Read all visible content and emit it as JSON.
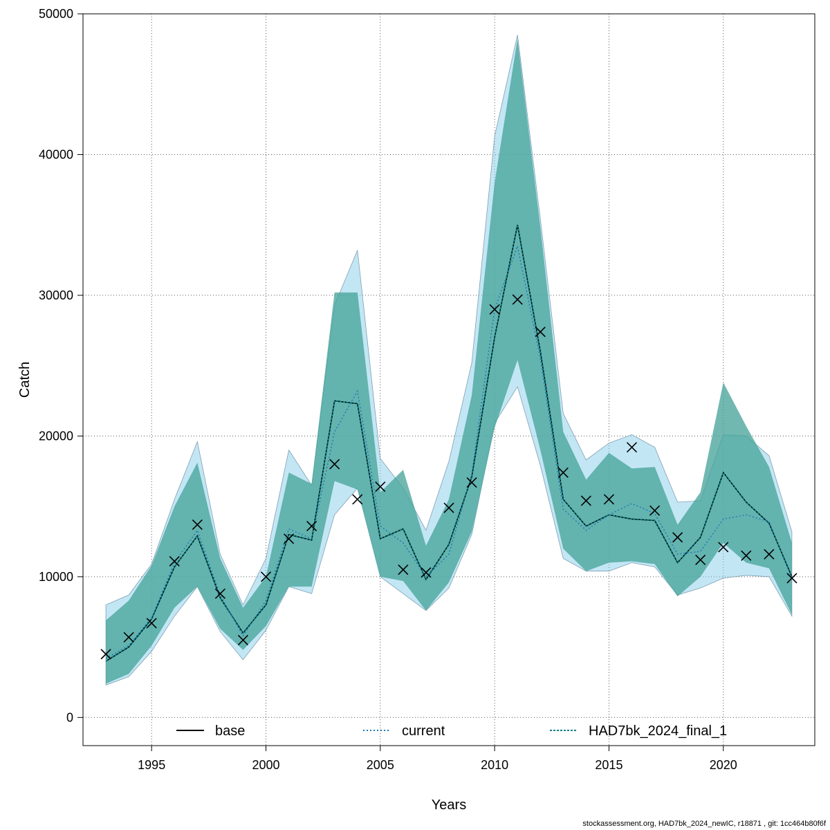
{
  "chart_data": {
    "type": "line",
    "xlabel": "Years",
    "ylabel": "Catch",
    "xlim": [
      1992,
      2024
    ],
    "ylim": [
      -2000,
      50000
    ],
    "x_ticks": [
      1995,
      2000,
      2005,
      2010,
      2015,
      2020
    ],
    "y_ticks": [
      0,
      10000,
      20000,
      30000,
      40000,
      50000
    ],
    "grid": true,
    "legend_position": "bottom",
    "years": [
      1993,
      1994,
      1995,
      1996,
      1997,
      1998,
      1999,
      2000,
      2001,
      2002,
      2003,
      2004,
      2005,
      2006,
      2007,
      2008,
      2009,
      2010,
      2011,
      2012,
      2013,
      2014,
      2015,
      2016,
      2017,
      2018,
      2019,
      2020,
      2021,
      2022,
      2023
    ],
    "series": [
      {
        "name": "base",
        "style": "solid",
        "color": "#000000",
        "values": [
          4000,
          5000,
          7000,
          10700,
          12900,
          8500,
          6000,
          8000,
          13000,
          12600,
          22500,
          22300,
          12700,
          13400,
          9800,
          12300,
          17100,
          27000,
          35000,
          26000,
          15500,
          13600,
          14400,
          14100,
          14000,
          11000,
          12800,
          17400,
          15300,
          13800,
          10000
        ],
        "lower": [
          2400,
          3100,
          5100,
          7800,
          9300,
          6300,
          4800,
          6500,
          9300,
          9300,
          16800,
          16200,
          10000,
          9700,
          7600,
          9600,
          13200,
          20600,
          25400,
          19000,
          12000,
          10400,
          11000,
          11100,
          10900,
          8600,
          10000,
          12400,
          11000,
          10600,
          7300
        ],
        "upper": [
          6900,
          8300,
          10800,
          15000,
          18100,
          11300,
          7800,
          10000,
          17400,
          16600,
          30200,
          30200,
          16000,
          17600,
          12200,
          15500,
          22900,
          38000,
          48200,
          34800,
          20300,
          16900,
          18800,
          17700,
          17800,
          13700,
          16000,
          23800,
          20700,
          17800,
          12400
        ]
      },
      {
        "name": "current",
        "style": "dotted",
        "color": "#1f77b4",
        "values": [
          4200,
          5100,
          7100,
          11000,
          13300,
          8700,
          5800,
          8300,
          13400,
          12700,
          20300,
          23200,
          13600,
          12400,
          10000,
          11600,
          17300,
          29000,
          33500,
          25500,
          14800,
          13300,
          14400,
          15200,
          14500,
          11600,
          11800,
          14100,
          14400,
          13900,
          9900
        ],
        "lower": [
          2300,
          2900,
          4700,
          7200,
          9300,
          6100,
          4100,
          6200,
          9300,
          8800,
          14400,
          16300,
          10000,
          8800,
          7600,
          9200,
          13000,
          20900,
          23500,
          17900,
          11300,
          10400,
          10400,
          11000,
          10700,
          8700,
          9200,
          9900,
          10100,
          10000,
          7200
        ],
        "upper": [
          8000,
          8700,
          10900,
          15500,
          19600,
          11600,
          8000,
          11300,
          19000,
          16500,
          29300,
          33200,
          18400,
          16300,
          13300,
          18200,
          25200,
          41300,
          48500,
          35400,
          21600,
          18300,
          19500,
          20100,
          19200,
          15300,
          15400,
          20100,
          20000,
          18600,
          13200
        ]
      },
      {
        "name": "HAD7bk_2024_final_1",
        "style": "dashed",
        "color": "#008080",
        "values": [
          4000,
          5000,
          7000,
          10700,
          12900,
          8500,
          6000,
          8000,
          13000,
          12600,
          22500,
          22300,
          12700,
          13400,
          9800,
          12300,
          17100,
          27000,
          35000,
          26000,
          15500,
          13600,
          14400,
          14100,
          14000,
          11000,
          12800,
          17400,
          15300,
          13800,
          10000
        ],
        "lower": [
          2400,
          3100,
          5100,
          7800,
          9300,
          6300,
          4800,
          6500,
          9300,
          9300,
          16800,
          16200,
          10000,
          9700,
          7600,
          9600,
          13200,
          20600,
          25400,
          19000,
          12000,
          10400,
          11000,
          11100,
          10900,
          8600,
          10000,
          12400,
          11000,
          10600,
          7300
        ],
        "upper": [
          6900,
          8300,
          10800,
          15000,
          18100,
          11300,
          7800,
          10000,
          17400,
          16600,
          30200,
          30200,
          16000,
          17600,
          12200,
          15500,
          22900,
          38000,
          48200,
          34800,
          20300,
          16900,
          18800,
          17700,
          17800,
          13700,
          16000,
          23800,
          20700,
          17800,
          12400
        ]
      }
    ],
    "observed": {
      "name": "observed",
      "marker": "x",
      "values": [
        4500,
        5700,
        6700,
        11100,
        13700,
        8800,
        5500,
        10000,
        12700,
        13600,
        18000,
        15500,
        16400,
        10500,
        10300,
        14900,
        16700,
        29000,
        29700,
        27400,
        17400,
        15400,
        15500,
        19200,
        14700,
        12800,
        11200,
        12100,
        11500,
        11600,
        9900
      ]
    }
  },
  "colors": {
    "band_light": "#87ceeb",
    "band_dark": "#5f9f8f",
    "grid": "#555555"
  },
  "footer": "stockassessment.org, HAD7bk_2024_newIC, r18871 , git: 1cc464b80f6f"
}
